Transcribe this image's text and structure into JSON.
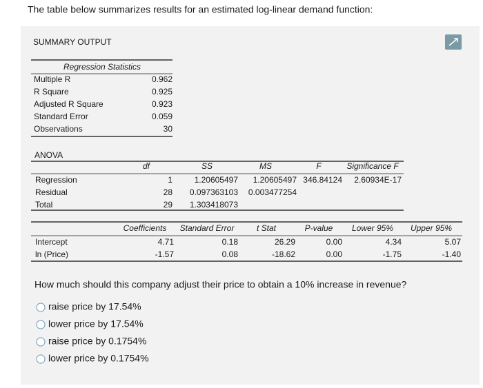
{
  "header": {
    "intro": "The table below summarizes results for an estimated log-linear demand function:"
  },
  "summary": {
    "title": "SUMMARY OUTPUT"
  },
  "regression_statistics": {
    "title": "Regression Statistics",
    "rows": [
      [
        "Multiple R",
        "0.962"
      ],
      [
        "R Square",
        "0.925"
      ],
      [
        "Adjusted R Square",
        "0.923"
      ],
      [
        "Standard Error",
        "0.059"
      ],
      [
        "Observations",
        "30"
      ]
    ]
  },
  "anova": {
    "title": "ANOVA",
    "header": [
      "df",
      "SS",
      "MS",
      "F",
      "Significance F"
    ],
    "rows": [
      {
        "label": "Regression",
        "values": [
          "1",
          "1.20605497",
          "1.20605497",
          "346.84124",
          "2.60934E-17"
        ]
      },
      {
        "label": "Residual",
        "values": [
          "28",
          "0.097363103",
          "0.003477254"
        ]
      },
      {
        "label": "Total",
        "values": [
          "29",
          "1.303418073"
        ]
      }
    ]
  },
  "coefficients": {
    "header": [
      "Coefficients",
      "Standard Error",
      "t Stat",
      "P-value",
      "Lower 95%",
      "Upper 95%"
    ],
    "rows": [
      {
        "label": "Intercept",
        "values": [
          "4.71",
          "0.18",
          "26.29",
          "0.00",
          "4.34",
          "5.07"
        ]
      },
      {
        "label": "ln (Price)",
        "values": [
          "-1.57",
          "0.08",
          "-18.62",
          "0.00",
          "-1.75",
          "-1.40"
        ]
      }
    ]
  },
  "question": {
    "text": "How much should this company adjust their price to obtain a 10% increase in revenue?",
    "options": [
      "raise price by 17.54%",
      "lower price by 17.54%",
      "raise price by 0.1754%",
      "lower price by 0.1754%"
    ]
  }
}
